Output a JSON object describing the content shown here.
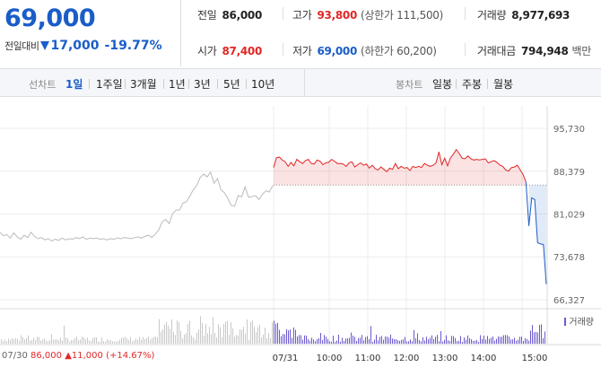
{
  "quote": {
    "price": "69,000",
    "change_label": "전일대비",
    "change": "17,000",
    "change_pct": "-19.77%"
  },
  "stats": {
    "prev_close_label": "전일",
    "prev_close": "86,000",
    "high_label": "고가",
    "high": "93,800",
    "upper_limit": "(상한가 111,500)",
    "volume_label": "거래량",
    "volume": "8,977,693",
    "open_label": "시가",
    "open": "87,400",
    "low_label": "저가",
    "low": "69,000",
    "lower_limit": "(하한가 60,200)",
    "value_label": "거래대금",
    "value": "794,948",
    "value_unit": "백만"
  },
  "tabs": {
    "line_label": "선차트",
    "line_items": [
      "1일",
      "1주일",
      "3개월",
      "1년",
      "3년",
      "5년",
      "10년"
    ],
    "active": "1일",
    "candle_label": "봉차트",
    "candle_items": [
      "일봉",
      "주봉",
      "월봉"
    ]
  },
  "footer": {
    "prev_date": "07/30",
    "prev_close": "86,000",
    "prev_change": "11,000",
    "prev_pct": "(+14.67%)"
  },
  "volume_legend": "거래량",
  "colors": {
    "up": "#e22626",
    "down": "#1a5dc9",
    "prev_line": "#bbbbbb",
    "volume": "#6a5acd"
  },
  "chart_data": {
    "type": "line",
    "y_ticks": [
      "95,730",
      "88,379",
      "81,029",
      "73,678",
      "66,327"
    ],
    "ylim": [
      66327,
      95730
    ],
    "baseline": 86000,
    "x_ticks": [
      "07/31",
      "10:00",
      "11:00",
      "12:00",
      "13:00",
      "14:00",
      "15:00"
    ],
    "series": [
      {
        "values": [
          77900,
          77300,
          77500,
          76900,
          77800,
          77100,
          76700,
          77400,
          77000,
          77900,
          77200,
          76800,
          77000,
          76600,
          76800,
          76400,
          76700,
          76500,
          76900,
          76600,
          76800,
          76700,
          77000,
          76800,
          77100,
          76700,
          76900,
          76800,
          76900,
          76700,
          76800,
          76600,
          76800,
          76700,
          76900,
          76800,
          77000,
          76900,
          76800,
          77000,
          77100,
          76900,
          77200,
          77400,
          77000,
          77600,
          78300,
          79700,
          80100,
          79400,
          81100,
          81700,
          81700,
          82900,
          83100,
          84100,
          85200,
          85900,
          87300,
          87900,
          87400,
          88200,
          86300,
          87100,
          85200,
          84700,
          83700,
          82500,
          82400,
          84200,
          84000,
          85700,
          83900,
          84000,
          84200,
          83500,
          84400,
          85000,
          84800,
          85900
        ]
      },
      {
        "values": [
          89000,
          90700,
          90800,
          90300,
          90000,
          89200,
          89900,
          89300,
          90400,
          90000,
          89700,
          90200,
          90400,
          89700,
          89600,
          90300,
          90100,
          89500,
          89800,
          89900,
          90400,
          90100,
          89700,
          89700,
          89600,
          89200,
          89800,
          90000,
          89100,
          89500,
          89800,
          89400,
          89600,
          88900,
          89400,
          88800,
          88600,
          89100,
          88700,
          88300,
          88900,
          88700,
          89700,
          88800,
          89200,
          88900,
          89000,
          88500,
          89200,
          89000,
          89200,
          89000,
          89700,
          89400,
          89200,
          89400,
          89800,
          91700,
          89500,
          90600,
          89300,
          90700,
          91300,
          92100,
          91400,
          90600,
          90500,
          91000,
          90500,
          90300,
          90400,
          90300,
          90400,
          90500,
          89800,
          90000,
          90200,
          89900,
          89400,
          89200,
          88600,
          88400,
          89000,
          89100,
          89400,
          88600,
          87800,
          86500,
          79000,
          83800,
          83500,
          76100,
          75900,
          75800,
          69000
        ]
      }
    ]
  }
}
